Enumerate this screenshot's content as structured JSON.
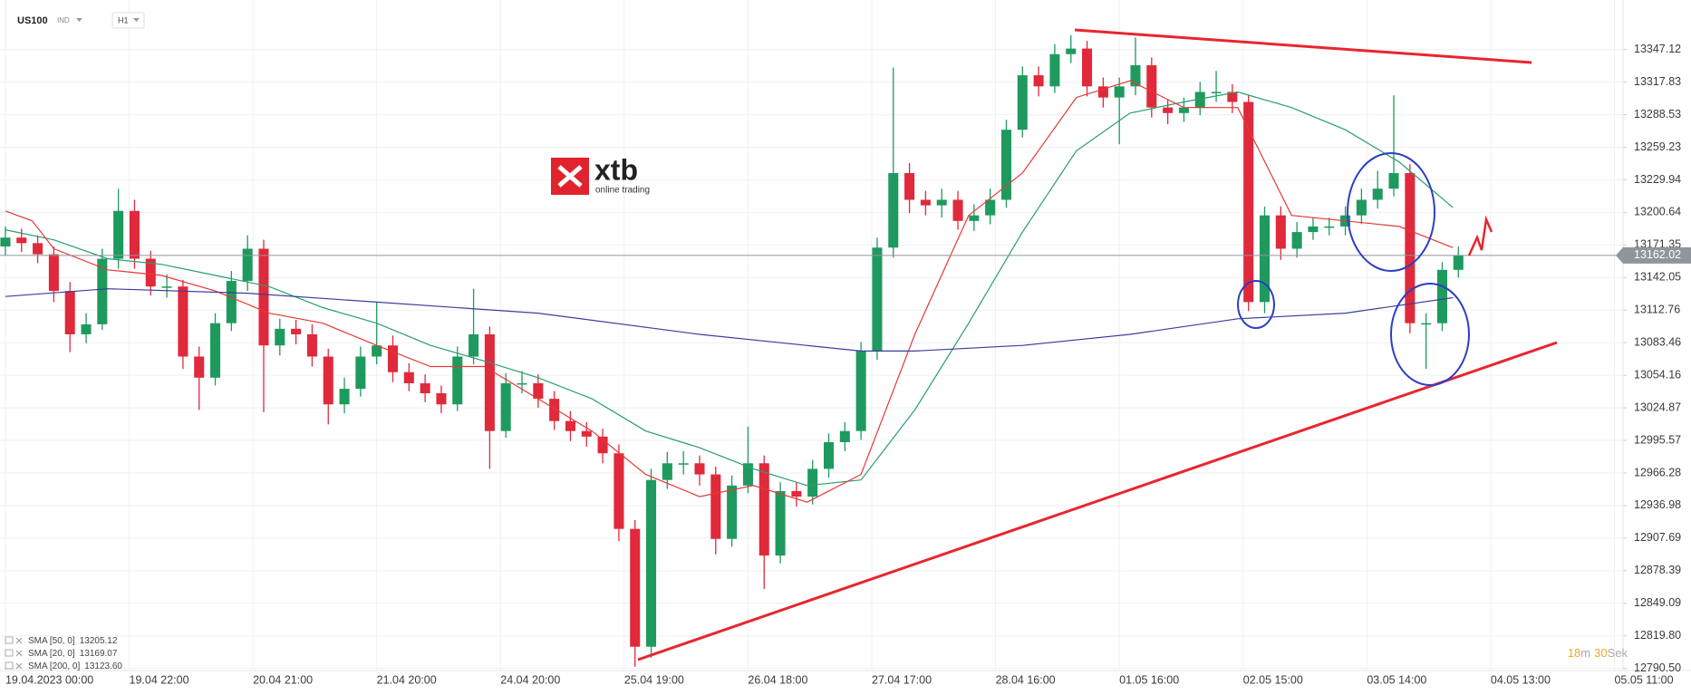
{
  "chart_data": {
    "type": "candlestick",
    "symbol": "US100",
    "market": "IND",
    "timeframe": "H1",
    "watermark": {
      "brand": "xtb",
      "tagline": "online trading"
    },
    "countdown": {
      "minutes": 18,
      "minutes_unit": "m",
      "seconds": 30,
      "seconds_unit": "Sek"
    },
    "last_price": 13162.02,
    "grid": true,
    "up_color": "#1f9a5e",
    "down_color": "#e0293b",
    "xlim": [
      -1,
      300.6
    ],
    "ylim": [
      12788.6,
      13391.7
    ],
    "xticks": [
      {
        "value": 0,
        "label": "19.04.2023 00:00"
      },
      {
        "value": 23,
        "label": "19.04 22:00"
      },
      {
        "value": 46,
        "label": "20.04 21:00"
      },
      {
        "value": 69,
        "label": "21.04 20:00"
      },
      {
        "value": 92,
        "label": "24.04 20:00"
      },
      {
        "value": 115,
        "label": "25.04 19:00"
      },
      {
        "value": 138,
        "label": "26.04 18:00"
      },
      {
        "value": 161,
        "label": "27.04 17:00"
      },
      {
        "value": 184,
        "label": "28.04 16:00"
      },
      {
        "value": 207,
        "label": "01.05 16:00"
      },
      {
        "value": 230,
        "label": "02.05 15:00"
      },
      {
        "value": 253,
        "label": "03.05 14:00"
      },
      {
        "value": 276,
        "label": "04.05 13:00"
      },
      {
        "value": 299,
        "label": "05.05 11:00"
      }
    ],
    "yticks": [
      13347.12,
      13317.83,
      13288.53,
      13259.23,
      13229.94,
      13200.64,
      13171.35,
      13142.05,
      13112.76,
      13083.46,
      13054.16,
      13024.87,
      12995.57,
      12966.28,
      12936.98,
      12907.69,
      12878.39,
      12849.09,
      {
        "value": 12819.8,
        "label": "12819.80"
      },
      {
        "value": 12790.5,
        "label": "12790.50"
      }
    ],
    "x": [
      0,
      3,
      6,
      9,
      12,
      15,
      18,
      21,
      24,
      27,
      30,
      33,
      36,
      39,
      42,
      45,
      48,
      51,
      54,
      57,
      60,
      63,
      66,
      69,
      72,
      75,
      78,
      81,
      84,
      87,
      90,
      93,
      96,
      99,
      102,
      105,
      108,
      111,
      114,
      117,
      120,
      123,
      126,
      129,
      132,
      135,
      138,
      141,
      144,
      147,
      150,
      153,
      156,
      159,
      162,
      165,
      168,
      171,
      174,
      177,
      180,
      183,
      186,
      189,
      192,
      195,
      198,
      201,
      204,
      207,
      210,
      213,
      216,
      219,
      222,
      225,
      228,
      231,
      234,
      237,
      240,
      243,
      246,
      249,
      252,
      255,
      258,
      261,
      264,
      267,
      270
    ],
    "open": [
      13170,
      13178,
      13173,
      13163,
      13130,
      13091,
      13100,
      13159,
      13202,
      13159,
      13134,
      13134,
      13071,
      13052,
      13101,
      13139,
      13168,
      13081,
      13096,
      13091,
      13071,
      13028,
      13042,
      13071,
      13081,
      13057,
      13047,
      13038,
      13028,
      13071,
      13091,
      13004,
      13047,
      13047,
      13033,
      13013,
      13004,
      12999,
      12984,
      12916,
      12810,
      12960,
      12975,
      12975,
      12965,
      12907,
      12955,
      12975,
      12892,
      12950,
      12945,
      12970,
      12994,
      13004,
      13076,
      13169,
      13236,
      13212,
      13207,
      13212,
      13193,
      13198,
      13212,
      13275,
      13324,
      13314,
      13343,
      13348,
      13314,
      13304,
      13314,
      13333,
      13295,
      13290,
      13295,
      13309,
      13309,
      13300,
      13120,
      13198,
      13168,
      13183,
      13188,
      13188,
      13198,
      13212,
      13222,
      13236,
      13101,
      13101,
      13149
    ],
    "high": [
      13188,
      13186,
      13180,
      13170,
      13138,
      13110,
      13168,
      13222,
      13212,
      13166,
      13145,
      13140,
      13080,
      13110,
      13148,
      13180,
      13176,
      13105,
      13104,
      13100,
      13078,
      13052,
      13080,
      13120,
      13090,
      13065,
      13055,
      13045,
      13080,
      13132,
      13098,
      13056,
      13058,
      13055,
      13040,
      13022,
      13012,
      13006,
      12992,
      12924,
      12970,
      12985,
      12986,
      12982,
      12972,
      12964,
      13008,
      12982,
      12958,
      12958,
      12978,
      13002,
      13012,
      13084,
      13178,
      13331,
      13245,
      13220,
      13222,
      13220,
      13208,
      13222,
      13284,
      13332,
      13332,
      13352,
      13360,
      13355,
      13322,
      13322,
      13358,
      13340,
      13302,
      13304,
      13318,
      13328,
      13316,
      13306,
      13206,
      13206,
      13192,
      13196,
      13196,
      13206,
      13222,
      13238,
      13306,
      13244,
      13110,
      13156,
      13170
    ],
    "low": [
      13162,
      13165,
      13155,
      13120,
      13075,
      13083,
      13095,
      13150,
      13150,
      13126,
      13124,
      13060,
      13023,
      13045,
      13094,
      13130,
      13021,
      13072,
      13082,
      13062,
      13010,
      13020,
      13035,
      13064,
      13048,
      13040,
      13030,
      13020,
      13022,
      13064,
      12970,
      12998,
      13038,
      13025,
      13005,
      12995,
      12990,
      12975,
      12905,
      12792,
      12800,
      12952,
      12965,
      12955,
      12893,
      12900,
      12948,
      12862,
      12885,
      12936,
      12938,
      12962,
      12986,
      12996,
      13068,
      13160,
      13200,
      13198,
      13196,
      13185,
      13184,
      13190,
      13205,
      13268,
      13305,
      13308,
      13335,
      13305,
      13295,
      13262,
      13306,
      13286,
      13280,
      13282,
      13288,
      13300,
      13290,
      13112,
      13110,
      13158,
      13160,
      13176,
      13180,
      13180,
      13190,
      13204,
      13215,
      13092,
      13060,
      13094,
      13142
    ],
    "close": [
      13178,
      13173,
      13163,
      13130,
      13091,
      13100,
      13159,
      13202,
      13159,
      13134,
      13134,
      13071,
      13052,
      13101,
      13139,
      13168,
      13081,
      13096,
      13091,
      13071,
      13028,
      13042,
      13071,
      13081,
      13057,
      13047,
      13038,
      13028,
      13071,
      13091,
      13004,
      13047,
      13047,
      13033,
      13013,
      13004,
      12999,
      12984,
      12916,
      12810,
      12960,
      12975,
      12975,
      12965,
      12907,
      12955,
      12975,
      12892,
      12950,
      12945,
      12970,
      12994,
      13004,
      13076,
      13169,
      13236,
      13212,
      13207,
      13212,
      13193,
      13198,
      13212,
      13275,
      13324,
      13314,
      13343,
      13348,
      13314,
      13304,
      13314,
      13333,
      13295,
      13290,
      13295,
      13309,
      13309,
      13300,
      13120,
      13198,
      13168,
      13183,
      13188,
      13188,
      13198,
      13212,
      13222,
      13236,
      13101,
      13101,
      13149,
      13162.02
    ],
    "series": [
      {
        "name": "SMA [50, 0]",
        "last": 13205.12,
        "color": "#2a9d6f",
        "x": [
          0,
          9,
          19,
          29,
          39,
          49,
          59,
          69,
          79,
          89,
          99,
          109,
          119,
          129,
          139,
          149,
          159,
          169,
          179,
          189,
          199,
          209,
          219,
          229,
          239,
          249,
          259,
          269
        ],
        "values": [
          13185,
          13176,
          13159,
          13154,
          13144,
          13134,
          13115,
          13101,
          13081,
          13067,
          13052,
          13033,
          13004,
          12989,
          12970,
          12955,
          12960,
          13023,
          13101,
          13183,
          13256,
          13290,
          13300,
          13309,
          13295,
          13275,
          13246,
          13205
        ]
      },
      {
        "name": "SMA [20, 0]",
        "last": 13169.07,
        "color": "#e53935",
        "x": [
          0,
          5,
          9,
          19,
          29,
          39,
          49,
          59,
          69,
          79,
          89,
          99,
          109,
          119,
          129,
          139,
          149,
          159,
          169,
          179,
          189,
          199,
          209,
          219,
          229,
          239,
          249,
          259,
          269
        ],
        "values": [
          13202,
          13193,
          13168,
          13149,
          13144,
          13130,
          13110,
          13101,
          13081,
          13062,
          13062,
          13033,
          13004,
          12965,
          12945,
          12955,
          12940,
          12965,
          13091,
          13198,
          13236,
          13304,
          13319,
          13295,
          13295,
          13198,
          13193,
          13188,
          13169
        ]
      },
      {
        "name": "SMA [200, 0]",
        "last": {
          "value": 13123.6,
          "label": "13123.60"
        },
        "color": "#3b3f99",
        "x": [
          0,
          19,
          45,
          69,
          99,
          129,
          159,
          169,
          189,
          209,
          229,
          249,
          269
        ],
        "values": [
          13125,
          13132,
          13128,
          13120,
          13110,
          13091,
          13076,
          13076,
          13081,
          13091,
          13105,
          13110,
          13124
        ]
      }
    ]
  }
}
